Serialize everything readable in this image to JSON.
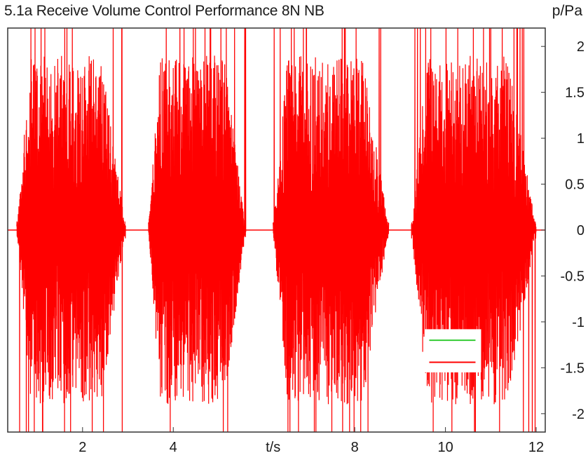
{
  "chart_data": {
    "type": "line",
    "title": "5.1a Receive Volume Control Performance 8N NB",
    "xlabel": "t/s",
    "ylabel": "p/Pa",
    "xlim": [
      0.35,
      12.2
    ],
    "ylim": [
      -2.2,
      2.2
    ],
    "x_ticks": [
      2,
      4,
      8,
      10,
      12
    ],
    "x_tick_labels": [
      "2",
      "4",
      "8",
      "10",
      "12"
    ],
    "y_ticks": [
      2,
      1.5,
      1,
      0.5,
      0,
      -0.5,
      -1,
      -1.5,
      -2
    ],
    "y_tick_labels": [
      "2",
      "1.5",
      "1",
      "0.5",
      "0",
      "-0.5",
      "-1",
      "-1.5",
      "-2"
    ],
    "grid": false,
    "legend_position": "bottom-right",
    "series": [
      {
        "color": "#ff0000",
        "bursts": [
          {
            "t_start": 0.55,
            "t_end": 2.95
          },
          {
            "t_start": 3.45,
            "t_end": 5.6
          },
          {
            "t_start": 6.2,
            "t_end": 8.75
          },
          {
            "t_start": 9.25,
            "t_end": 12.0
          }
        ]
      }
    ],
    "legend_swatches": [
      "#33cc33",
      "#ff0000"
    ]
  }
}
